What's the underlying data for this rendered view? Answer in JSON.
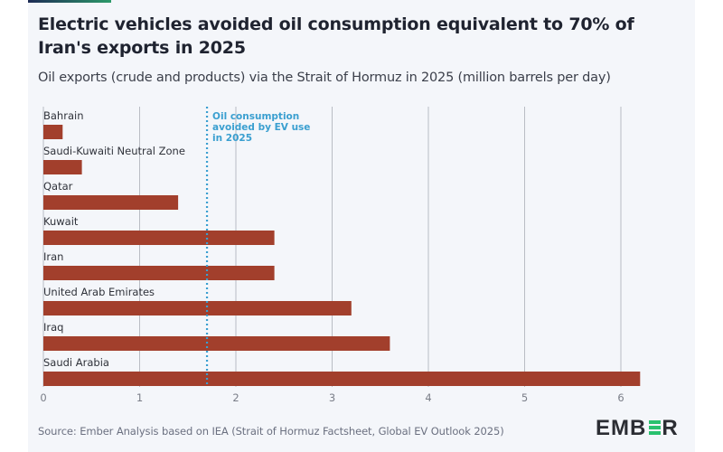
{
  "header": {
    "title": "Electric vehicles avoided oil consumption equivalent to 70% of Iran's exports in 2025",
    "subtitle": "Oil exports (crude and products) via the Strait of Hormuz in 2025 (million barrels per day)"
  },
  "footer": {
    "source": "Source: Ember Analysis based on IEA (Strait of Hormuz Factsheet, Global EV Outlook 2025)",
    "logo_left": "EMB",
    "logo_right": "R"
  },
  "colors": {
    "bar": "#a23f2c",
    "reference_line": "#3a9fd0",
    "grid": "#b9bcc4",
    "label": "#2f323a",
    "tick": "#7a7e88",
    "logo_accent": "#29c16e"
  },
  "chart_data": {
    "type": "bar",
    "orientation": "horizontal",
    "title": "Oil exports (crude and products) via the Strait of Hormuz in 2025 (million barrels per day)",
    "xlabel": "",
    "ylabel": "",
    "categories": [
      "Bahrain",
      "Saudi-Kuwaiti Neutral Zone",
      "Qatar",
      "Kuwait",
      "Iran",
      "United Arab Emirates",
      "Iraq",
      "Saudi Arabia"
    ],
    "values": [
      0.2,
      0.4,
      1.4,
      2.4,
      2.4,
      3.2,
      3.6,
      6.2
    ],
    "xlim": [
      0,
      6.2
    ],
    "xticks": [
      "0",
      "1",
      "2",
      "3",
      "4",
      "5",
      "6"
    ],
    "grid": true,
    "annotation": {
      "type": "vertical-dotted-line",
      "value": 1.7,
      "text": [
        "Oil consumption",
        "avoided by EV use",
        "in 2025"
      ]
    }
  }
}
